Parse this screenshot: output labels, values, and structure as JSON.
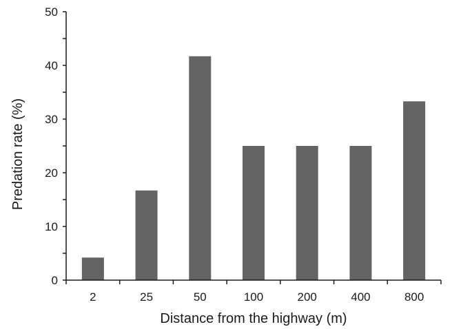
{
  "chart_data": {
    "type": "bar",
    "title": "",
    "xlabel": "Distance from the highway (m)",
    "ylabel": "Predation rate (%)",
    "categories": [
      "2",
      "25",
      "50",
      "100",
      "200",
      "400",
      "800"
    ],
    "values": [
      4.2,
      16.7,
      41.7,
      25.0,
      25.0,
      25.0,
      33.3
    ],
    "ylim": [
      0,
      50
    ],
    "yticks": [
      "0",
      "10",
      "20",
      "30",
      "40",
      "50"
    ],
    "grid": false,
    "legend": "none",
    "bar_color": "#646464",
    "axis_color": "#1a1a1a"
  }
}
